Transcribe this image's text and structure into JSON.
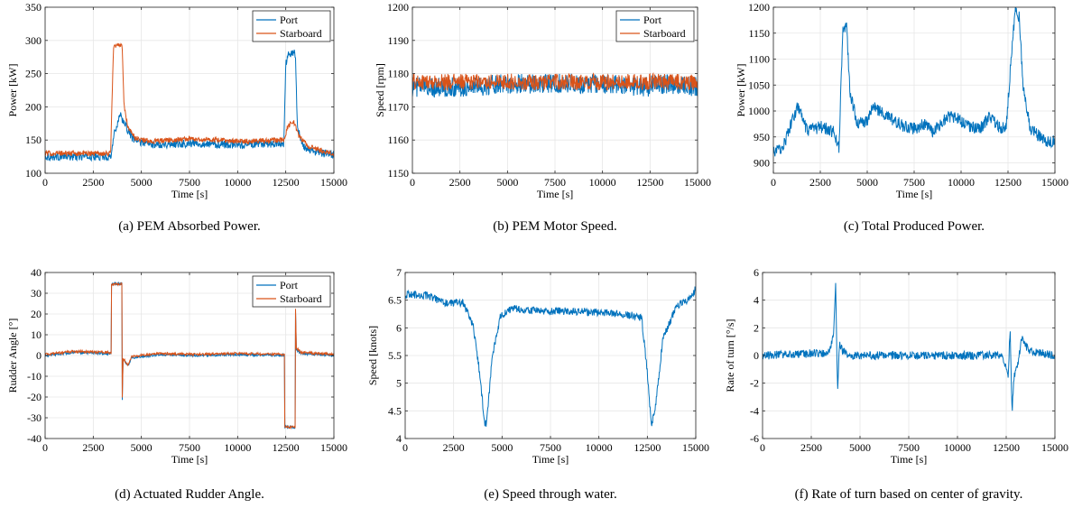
{
  "colors": {
    "port": "#0072bd",
    "starboard": "#d95319",
    "axis": "#262626",
    "grid": "#e6e6e6"
  },
  "captions": [
    "(a)  PEM Absorbed Power.",
    "(b)  PEM Motor Speed.",
    "(c)  Total Produced Power.",
    "(d)  Actuated Rudder Angle.",
    "(e)  Speed through water.",
    "(f)  Rate of turn based on center of gravity."
  ],
  "chart_data": [
    {
      "type": "line",
      "xlabel": "Time [s]",
      "ylabel": "Power [kW]",
      "xlim": [
        0,
        15000
      ],
      "ylim": [
        100,
        350
      ],
      "xticks": [
        0,
        2500,
        5000,
        7500,
        10000,
        12500,
        15000
      ],
      "yticks": [
        100,
        150,
        200,
        250,
        300,
        350
      ],
      "grid": true,
      "legend": "top-right",
      "series": [
        {
          "name": "Port",
          "color": "#0072bd",
          "noise": 6,
          "x": [
            0,
            3400,
            3600,
            3900,
            4100,
            4600,
            5500,
            7500,
            10000,
            12400,
            12500,
            12650,
            13000,
            13100,
            13400,
            14000,
            15000
          ],
          "y": [
            125,
            125,
            160,
            190,
            175,
            150,
            143,
            145,
            143,
            145,
            265,
            280,
            280,
            170,
            140,
            132,
            128
          ]
        },
        {
          "name": "Starboard",
          "color": "#d95319",
          "noise": 4,
          "x": [
            0,
            3400,
            3550,
            4000,
            4100,
            4300,
            4700,
            5500,
            7500,
            10000,
            12400,
            12600,
            12900,
            13200,
            13700,
            14500,
            15000
          ],
          "y": [
            130,
            130,
            290,
            295,
            200,
            170,
            152,
            148,
            152,
            148,
            150,
            170,
            178,
            155,
            140,
            133,
            130
          ]
        }
      ]
    },
    {
      "type": "line",
      "xlabel": "Time [s]",
      "ylabel": "Speed [rpm]",
      "xlim": [
        0,
        15000
      ],
      "ylim": [
        1150,
        1200
      ],
      "xticks": [
        0,
        2500,
        5000,
        7500,
        10000,
        12500,
        15000
      ],
      "yticks": [
        1150,
        1160,
        1170,
        1180,
        1190,
        1200
      ],
      "grid": true,
      "legend": "top-right",
      "series": [
        {
          "name": "Port",
          "color": "#0072bd",
          "noise": 3,
          "x": [
            0,
            3500,
            4500,
            7500,
            10000,
            12400,
            12500,
            15000
          ],
          "y": [
            1176,
            1176,
            1177,
            1177,
            1177,
            1176,
            1177,
            1176
          ]
        },
        {
          "name": "Starboard",
          "color": "#d95319",
          "noise": 2.5,
          "x": [
            0,
            3500,
            4500,
            7500,
            10000,
            12400,
            12500,
            15000
          ],
          "y": [
            1177.5,
            1177.5,
            1177.5,
            1177.5,
            1177.5,
            1177.5,
            1177.5,
            1177.5
          ]
        }
      ]
    },
    {
      "type": "line",
      "xlabel": "Time [s]",
      "ylabel": "Power [kW]",
      "xlim": [
        0,
        15000
      ],
      "ylim": [
        880,
        1200
      ],
      "xticks": [
        0,
        2500,
        5000,
        7500,
        10000,
        12500,
        15000
      ],
      "yticks": [
        900,
        950,
        1000,
        1050,
        1100,
        1150,
        1200
      ],
      "grid": true,
      "legend": "none",
      "series": [
        {
          "name": "",
          "color": "#0072bd",
          "noise": 12,
          "x": [
            0,
            500,
            1300,
            1800,
            2500,
            3200,
            3500,
            3700,
            3900,
            4100,
            4500,
            5000,
            5300,
            6000,
            6500,
            7000,
            7500,
            8000,
            8500,
            9300,
            9800,
            10500,
            11000,
            11500,
            12000,
            12400,
            12700,
            12900,
            13100,
            13300,
            13700,
            14200,
            14700,
            15000
          ],
          "y": [
            920,
            930,
            1010,
            960,
            970,
            960,
            930,
            1160,
            1160,
            1030,
            975,
            980,
            1010,
            990,
            980,
            970,
            965,
            975,
            960,
            990,
            985,
            970,
            965,
            990,
            970,
            965,
            1120,
            1200,
            1180,
            1050,
            965,
            950,
            940,
            945
          ]
        }
      ]
    },
    {
      "type": "line",
      "xlabel": "Time [s]",
      "ylabel": "Rudder Angle [°]",
      "xlim": [
        0,
        15000
      ],
      "ylim": [
        -40,
        40
      ],
      "xticks": [
        0,
        2500,
        5000,
        7500,
        10000,
        12500,
        15000
      ],
      "yticks": [
        -40,
        -30,
        -20,
        -10,
        0,
        10,
        20,
        30,
        40
      ],
      "grid": true,
      "legend": "top-right",
      "series": [
        {
          "name": "Port",
          "color": "#0072bd",
          "noise": 0.6,
          "x": [
            0,
            1500,
            3200,
            3449,
            3450,
            3999,
            4000,
            4050,
            4300,
            4500,
            6000,
            8000,
            10000,
            12400,
            12449,
            12450,
            12999,
            13000,
            13050,
            13300,
            15000
          ],
          "y": [
            0,
            1.5,
            1,
            1,
            34.5,
            34.5,
            -24,
            -2,
            -5,
            -1,
            0.5,
            0,
            0.5,
            0,
            0,
            -34.5,
            -34.5,
            25,
            3,
            1,
            0
          ]
        },
        {
          "name": "Starboard",
          "color": "#d95319",
          "noise": 0.6,
          "x": [
            0,
            1500,
            3200,
            3449,
            3450,
            3999,
            4000,
            4050,
            4300,
            4500,
            6000,
            8000,
            10000,
            12400,
            12449,
            12450,
            12999,
            13000,
            13050,
            13300,
            15000
          ],
          "y": [
            0.5,
            2,
            1.5,
            1.5,
            34.5,
            34.5,
            -23,
            -1.5,
            -4.5,
            -0.5,
            1,
            0.5,
            1,
            0.5,
            0.5,
            -34.5,
            -34.5,
            26,
            3.5,
            1.5,
            0.5
          ]
        }
      ]
    },
    {
      "type": "line",
      "xlabel": "Time [s]",
      "ylabel": "Speed [knots]",
      "xlim": [
        0,
        15000
      ],
      "ylim": [
        4,
        7
      ],
      "xticks": [
        0,
        2500,
        5000,
        7500,
        10000,
        12500,
        15000
      ],
      "yticks": [
        4,
        4.5,
        5,
        5.5,
        6,
        6.5,
        7
      ],
      "grid": true,
      "legend": "none",
      "series": [
        {
          "name": "",
          "color": "#0072bd",
          "noise": 0.07,
          "x": [
            0,
            1000,
            2000,
            3000,
            3500,
            3800,
            4100,
            4200,
            4500,
            4900,
            5500,
            7000,
            9000,
            11000,
            12200,
            12500,
            12700,
            12900,
            13300,
            14000,
            14600,
            15000
          ],
          "y": [
            6.6,
            6.6,
            6.45,
            6.45,
            6.05,
            5.3,
            4.3,
            4.25,
            5.5,
            6.2,
            6.35,
            6.3,
            6.3,
            6.25,
            6.2,
            5.2,
            4.25,
            4.5,
            5.8,
            6.4,
            6.5,
            6.7
          ]
        }
      ]
    },
    {
      "type": "line",
      "xlabel": "Time [s]",
      "ylabel": "Rate of turn [°/s]",
      "xlim": [
        0,
        15000
      ],
      "ylim": [
        -6,
        6
      ],
      "xticks": [
        0,
        2500,
        5000,
        7500,
        10000,
        12500,
        15000
      ],
      "yticks": [
        -6,
        -4,
        -2,
        0,
        2,
        4,
        6
      ],
      "grid": true,
      "legend": "none",
      "series": [
        {
          "name": "",
          "color": "#0072bd",
          "noise": 0.3,
          "x": [
            0,
            3400,
            3650,
            3750,
            3850,
            3950,
            4100,
            4500,
            7000,
            10000,
            12300,
            12600,
            12700,
            12800,
            12900,
            13100,
            13300,
            13700,
            15000
          ],
          "y": [
            0,
            0.2,
            1.5,
            5.5,
            -2.8,
            1.0,
            0.3,
            0,
            0,
            0,
            0,
            -1.5,
            2.0,
            -4.2,
            -1.5,
            -0.5,
            1.2,
            0.3,
            0
          ]
        }
      ]
    }
  ]
}
